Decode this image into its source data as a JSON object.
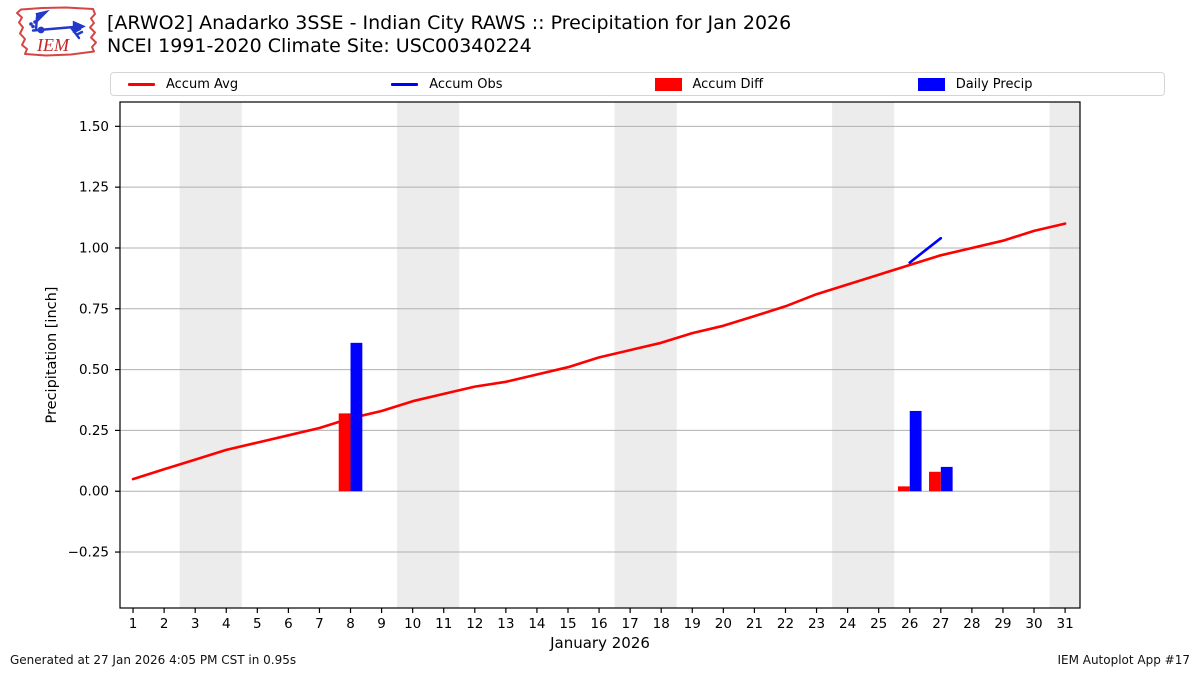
{
  "header": {
    "title": "[ARWO2] Anadarko 3SSE - Indian City RAWS :: Precipitation for Jan 2026",
    "subtitle": "NCEI 1991-2020 Climate Site: USC00340224",
    "logo_text": "IEM"
  },
  "logo_colors": {
    "outline": "#d64545",
    "instrument": "#2239c9",
    "text": "#c42727"
  },
  "legend": {
    "items": [
      {
        "label": "Accum Avg",
        "swatch": "line",
        "color": "#ff0000"
      },
      {
        "label": "Accum Obs",
        "swatch": "line",
        "color": "#0000ff"
      },
      {
        "label": "Accum Diff",
        "swatch": "patch",
        "color": "#ff0000"
      },
      {
        "label": "Daily Precip",
        "swatch": "patch",
        "color": "#0000ff"
      }
    ]
  },
  "chart_data": {
    "type": "line",
    "title": "[ARWO2] Anadarko 3SSE - Indian City RAWS :: Precipitation for Jan 2026",
    "subtitle": "NCEI 1991-2020 Climate Site: USC00340224",
    "xlabel": "January 2026",
    "ylabel": "Precipitation [inch]",
    "xlim": [
      0.58,
      31.48
    ],
    "ylim": [
      -0.48,
      1.6
    ],
    "xticks": [
      1,
      2,
      3,
      4,
      5,
      6,
      7,
      8,
      9,
      10,
      11,
      12,
      13,
      14,
      15,
      16,
      17,
      18,
      19,
      20,
      21,
      22,
      23,
      24,
      25,
      26,
      27,
      28,
      29,
      30,
      31
    ],
    "yticks": [
      -0.25,
      0.0,
      0.25,
      0.5,
      0.75,
      1.0,
      1.25,
      1.5
    ],
    "grid": "horizontal",
    "gridline_color": "#b0b0b0",
    "weekend_band_color": "#ececec",
    "weekend_bands_days": [
      [
        2.5,
        4.5
      ],
      [
        9.5,
        11.5
      ],
      [
        16.5,
        18.5
      ],
      [
        23.5,
        25.5
      ],
      [
        30.5,
        31.48
      ]
    ],
    "bar_half_width_days": 0.38,
    "series": [
      {
        "name": "Accum Avg",
        "type": "line",
        "color": "#ff0000",
        "x": [
          1,
          2,
          3,
          4,
          5,
          6,
          7,
          8,
          9,
          10,
          11,
          12,
          13,
          14,
          15,
          16,
          17,
          18,
          19,
          20,
          21,
          22,
          23,
          24,
          25,
          26,
          27,
          28,
          29,
          30,
          31
        ],
        "y": [
          0.05,
          0.09,
          0.13,
          0.17,
          0.2,
          0.23,
          0.26,
          0.3,
          0.33,
          0.37,
          0.4,
          0.43,
          0.45,
          0.48,
          0.51,
          0.55,
          0.58,
          0.61,
          0.65,
          0.68,
          0.72,
          0.76,
          0.81,
          0.85,
          0.89,
          0.93,
          0.97,
          1.0,
          1.03,
          1.07,
          1.1
        ]
      },
      {
        "name": "Accum Diff",
        "type": "bar",
        "bar_side": "left",
        "color": "#ff0000",
        "x": [
          8,
          26,
          27
        ],
        "y": [
          0.32,
          0.02,
          0.08
        ]
      },
      {
        "name": "Daily Precip",
        "type": "bar",
        "bar_side": "right",
        "color": "#0000ff",
        "x": [
          8,
          26,
          27
        ],
        "y": [
          0.61,
          0.33,
          0.1
        ]
      },
      {
        "name": "Accum Obs",
        "type": "line",
        "color": "#0000ff",
        "x": [
          26,
          27
        ],
        "y": [
          0.94,
          1.04
        ]
      }
    ]
  },
  "footer": {
    "left": "Generated at 27 Jan 2026 4:05 PM CST in 0.95s",
    "right": "IEM Autoplot App #17"
  }
}
